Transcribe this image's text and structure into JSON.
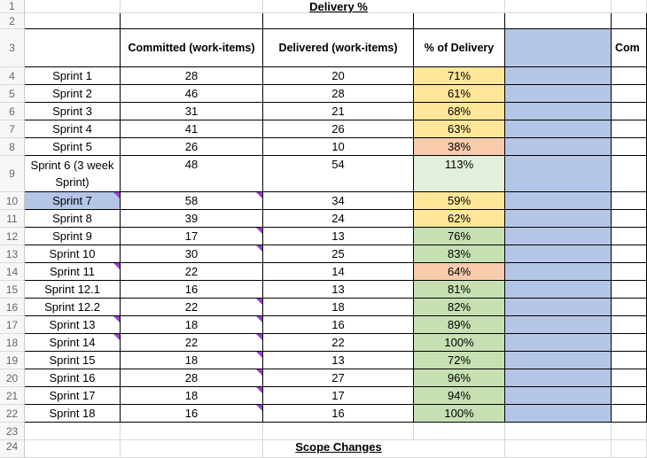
{
  "title": "Delivery %",
  "bottom_partial": "Scope Changes",
  "headers": {
    "committed": "Committed  (work-items)",
    "delivered": "Delivered (work-items)",
    "pct": "% of Delivery",
    "next": "Com"
  },
  "row_numbers": [
    "1",
    "2",
    "3",
    "4",
    "5",
    "6",
    "7",
    "8",
    "9",
    "10",
    "11",
    "12",
    "13",
    "14",
    "15",
    "16",
    "17",
    "18",
    "19",
    "20",
    "21",
    "22",
    "23",
    "24"
  ],
  "rows": [
    {
      "sprint": "Sprint 1",
      "committed": "28",
      "delivered": "20",
      "pct": "71%",
      "pct_color": "yellow"
    },
    {
      "sprint": "Sprint 2",
      "committed": "46",
      "delivered": "28",
      "pct": "61%",
      "pct_color": "yellow"
    },
    {
      "sprint": "Sprint 3",
      "committed": "31",
      "delivered": "21",
      "pct": "68%",
      "pct_color": "yellow"
    },
    {
      "sprint": "Sprint 4",
      "committed": "41",
      "delivered": "26",
      "pct": "63%",
      "pct_color": "yellow"
    },
    {
      "sprint": "Sprint 5",
      "committed": "26",
      "delivered": "10",
      "pct": "38%",
      "pct_color": "orange"
    },
    {
      "sprint": "Sprint 6 (3 week Sprint)",
      "committed": "48",
      "delivered": "54",
      "pct": "113%",
      "pct_color": "lgreen"
    },
    {
      "sprint": "Sprint 7",
      "committed": "58",
      "delivered": "34",
      "pct": "59%",
      "pct_color": "yellow"
    },
    {
      "sprint": "Sprint 8",
      "committed": "39",
      "delivered": "24",
      "pct": "62%",
      "pct_color": "yellow"
    },
    {
      "sprint": "Sprint 9",
      "committed": "17",
      "delivered": "13",
      "pct": "76%",
      "pct_color": "green"
    },
    {
      "sprint": "Sprint 10",
      "committed": "30",
      "delivered": "25",
      "pct": "83%",
      "pct_color": "green"
    },
    {
      "sprint": "Sprint 11",
      "committed": "22",
      "delivered": "14",
      "pct": "64%",
      "pct_color": "orange"
    },
    {
      "sprint": "Sprint 12.1",
      "committed": "16",
      "delivered": "13",
      "pct": "81%",
      "pct_color": "green"
    },
    {
      "sprint": "Sprint 12.2",
      "committed": "22",
      "delivered": "18",
      "pct": "82%",
      "pct_color": "green"
    },
    {
      "sprint": "Sprint 13",
      "committed": "18",
      "delivered": "16",
      "pct": "89%",
      "pct_color": "green"
    },
    {
      "sprint": "Sprint 14",
      "committed": "22",
      "delivered": "22",
      "pct": "100%",
      "pct_color": "green"
    },
    {
      "sprint": "Sprint 15",
      "committed": "18",
      "delivered": "13",
      "pct": "72%",
      "pct_color": "green"
    },
    {
      "sprint": "Sprint 16",
      "committed": "28",
      "delivered": "27",
      "pct": "96%",
      "pct_color": "green"
    },
    {
      "sprint": "Sprint 17",
      "committed": "18",
      "delivered": "17",
      "pct": "94%",
      "pct_color": "green"
    },
    {
      "sprint": "Sprint 18",
      "committed": "16",
      "delivered": "16",
      "pct": "100%",
      "pct_color": "green"
    }
  ],
  "colors": {
    "yellow": "#ffe699",
    "orange": "#f8cbad",
    "green": "#c6e0b4",
    "lgreen": "#e2efda",
    "blue": "#b4c6e7",
    "comment_flag": "#9b3fd0"
  }
}
